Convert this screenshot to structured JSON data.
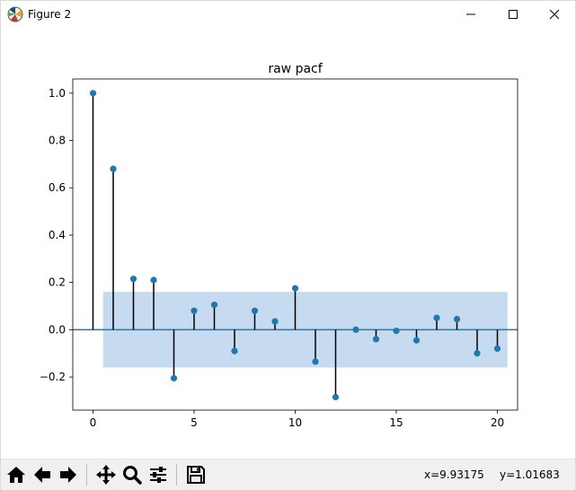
{
  "window": {
    "title": "Figure 2",
    "icons": {
      "app": "matplotlib-figure-icon",
      "minimize": "minimize-icon",
      "maximize": "maximize-icon",
      "close": "close-icon"
    }
  },
  "chart_data": {
    "type": "scatter",
    "style": "stem",
    "title": "raw pacf",
    "xlabel": "",
    "ylabel": "",
    "xlim": [
      -1,
      21
    ],
    "ylim": [
      -0.34,
      1.06
    ],
    "xticks": [
      0,
      5,
      10,
      15,
      20
    ],
    "xtick_labels": [
      "0",
      "5",
      "10",
      "15",
      "20"
    ],
    "yticks": [
      -0.2,
      0.0,
      0.2,
      0.4,
      0.6,
      0.8,
      1.0
    ],
    "ytick_labels": [
      "−0.2",
      "0.0",
      "0.2",
      "0.4",
      "0.6",
      "0.8",
      "1.0"
    ],
    "grid": false,
    "x": [
      0,
      1,
      2,
      3,
      4,
      5,
      6,
      7,
      8,
      9,
      10,
      11,
      12,
      13,
      14,
      15,
      16,
      17,
      18,
      19,
      20
    ],
    "values": [
      1.0,
      0.68,
      0.215,
      0.21,
      -0.205,
      0.08,
      0.105,
      -0.09,
      0.08,
      0.035,
      0.175,
      -0.135,
      -0.285,
      0.0,
      -0.04,
      -0.005,
      -0.045,
      0.05,
      0.045,
      -0.1,
      -0.08
    ],
    "confidence_band": {
      "x_range": [
        0.5,
        20.5
      ],
      "lower": -0.16,
      "upper": 0.16
    },
    "zero_line": 0,
    "colors": {
      "marker": "#1f77b4",
      "stem": "#000000",
      "band": "#c6dbef",
      "zero_line": "#1f77b4"
    }
  },
  "toolbar": {
    "buttons": [
      {
        "name": "home-button",
        "icon": "home-icon"
      },
      {
        "name": "back-button",
        "icon": "arrow-left-icon"
      },
      {
        "name": "forward-button",
        "icon": "arrow-right-icon"
      },
      {
        "name": "pan-button",
        "icon": "move-icon"
      },
      {
        "name": "zoom-button",
        "icon": "magnifier-icon"
      },
      {
        "name": "subplots-button",
        "icon": "sliders-icon"
      },
      {
        "name": "save-button",
        "icon": "floppy-disk-icon"
      }
    ],
    "x_readout": "x=9.93175",
    "y_readout": "y=1.01683"
  }
}
